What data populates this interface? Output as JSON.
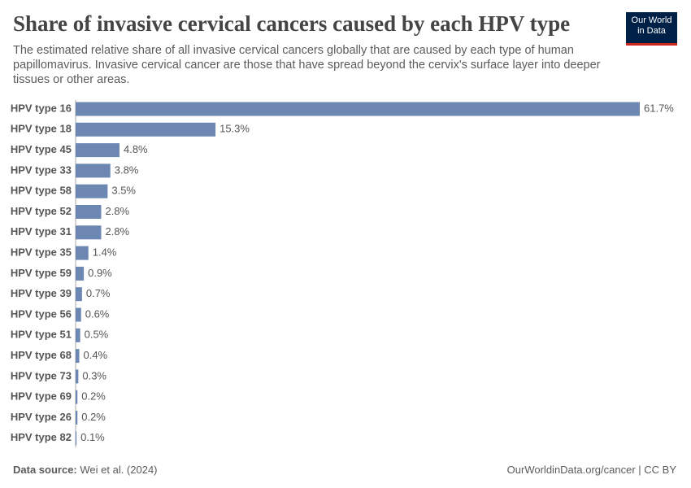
{
  "chart_data": {
    "type": "bar",
    "orientation": "horizontal",
    "title": "Share of invasive cervical cancers caused by each HPV type",
    "subtitle": "The estimated relative share of all invasive cervical cancers globally that are caused by each type of human papillomavirus. Invasive cervical cancer are those that have spread beyond the cervix's surface layer into deeper tissues or other areas.",
    "categories": [
      "HPV type 16",
      "HPV type 18",
      "HPV type 45",
      "HPV type 33",
      "HPV type 58",
      "HPV type 52",
      "HPV type 31",
      "HPV type 35",
      "HPV type 59",
      "HPV type 39",
      "HPV type 56",
      "HPV type 51",
      "HPV type 68",
      "HPV type 73",
      "HPV type 69",
      "HPV type 26",
      "HPV type 82"
    ],
    "values": [
      61.7,
      15.3,
      4.8,
      3.8,
      3.5,
      2.8,
      2.8,
      1.4,
      0.9,
      0.7,
      0.6,
      0.5,
      0.4,
      0.3,
      0.2,
      0.2,
      0.1
    ],
    "value_labels": [
      "61.7%",
      "15.3%",
      "4.8%",
      "3.8%",
      "3.5%",
      "2.8%",
      "2.8%",
      "1.4%",
      "0.9%",
      "0.7%",
      "0.6%",
      "0.5%",
      "0.4%",
      "0.3%",
      "0.2%",
      "0.2%",
      "0.1%"
    ],
    "color": "#6d87b3",
    "source_label": "Data source:",
    "source": "Wei et al. (2024)",
    "url": "OurWorldinData.org/cancer | CC BY",
    "logo": [
      "Our World",
      "in Data"
    ]
  }
}
